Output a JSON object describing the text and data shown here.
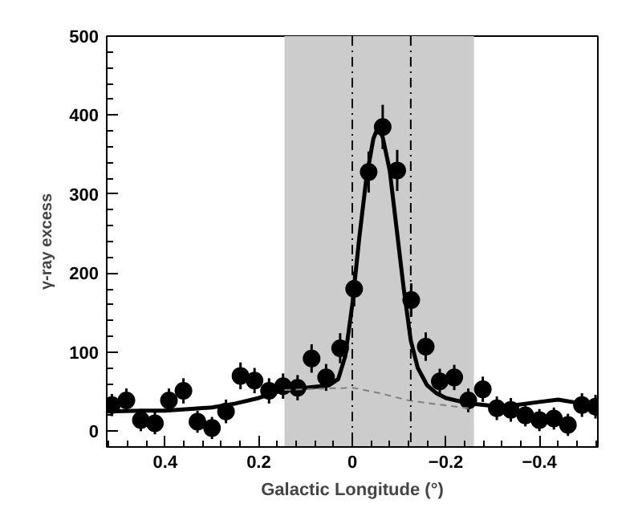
{
  "chart_data": {
    "type": "scatter",
    "xlabel": "Galactic Longitude (°)",
    "ylabel": "γ-ray excess",
    "xlim": [
      0.525,
      -0.525
    ],
    "ylim": [
      -20,
      500
    ],
    "xticks": [
      0.4,
      0.2,
      0,
      -0.2,
      -0.4
    ],
    "yticks": [
      0,
      100,
      200,
      300,
      400,
      500
    ],
    "grid": false,
    "series": [
      {
        "color": "#000000",
        "marker": "circle",
        "x": [
          0.514,
          0.483,
          0.452,
          0.422,
          0.392,
          0.361,
          0.331,
          0.3,
          0.27,
          0.239,
          0.209,
          0.178,
          0.148,
          0.117,
          0.087,
          0.056,
          0.026,
          -0.004,
          -0.035,
          -0.065,
          -0.096,
          -0.126,
          -0.157,
          -0.187,
          -0.218,
          -0.248,
          -0.279,
          -0.309,
          -0.339,
          -0.37,
          -0.4,
          -0.431,
          -0.461,
          -0.491,
          -0.52
        ],
        "values": [
          33,
          39,
          14,
          10,
          39,
          51,
          12,
          4,
          25,
          70,
          64,
          51,
          57,
          55,
          92,
          68,
          105,
          180,
          328,
          385,
          330,
          166,
          107,
          63,
          68,
          39,
          53,
          29,
          27,
          20,
          14,
          16,
          8,
          33,
          31
        ],
        "errors": [
          14,
          15,
          14,
          14,
          15,
          16,
          14,
          14,
          15,
          17,
          16,
          16,
          16,
          16,
          18,
          17,
          19,
          22,
          26,
          28,
          26,
          21,
          18,
          16,
          16,
          15,
          16,
          15,
          15,
          14,
          14,
          14,
          14,
          15,
          15
        ]
      },
      {
        "type": "line",
        "color": "#000000",
        "line_style": "solid",
        "x": [
          0.525,
          0.45,
          0.4,
          0.35,
          0.3,
          0.25,
          0.2,
          0.15,
          0.1,
          0.05,
          0.03,
          0.015,
          0.0,
          -0.015,
          -0.03,
          -0.045,
          -0.055,
          -0.065,
          -0.08,
          -0.095,
          -0.11,
          -0.125,
          -0.14,
          -0.16,
          -0.18,
          -0.2,
          -0.25,
          -0.3,
          -0.35,
          -0.4,
          -0.44,
          -0.48,
          -0.525
        ],
        "values": [
          25,
          26,
          26,
          28,
          30,
          35,
          42,
          52,
          55,
          58,
          66,
          95,
          160,
          245,
          320,
          370,
          385,
          372,
          330,
          255,
          180,
          115,
          80,
          58,
          48,
          42,
          35,
          32,
          33,
          37,
          40,
          36,
          35
        ]
      },
      {
        "type": "line",
        "color": "#808080",
        "line_style": "dashed",
        "x": [
          0.145,
          0.1,
          0.05,
          0.0,
          -0.06,
          -0.12,
          -0.18,
          -0.25
        ],
        "values": [
          52,
          53,
          54,
          55,
          48,
          39,
          34,
          29
        ]
      }
    ],
    "bands": [
      {
        "axis": "x",
        "from": 0.145,
        "to": -0.26,
        "color": "#cccccc"
      }
    ],
    "ref_lines": [
      {
        "axis": "x",
        "value": 0,
        "line_style": "dashdot",
        "color": "#000000"
      },
      {
        "axis": "x",
        "value": -0.125,
        "line_style": "dashdot",
        "color": "#000000"
      }
    ]
  }
}
